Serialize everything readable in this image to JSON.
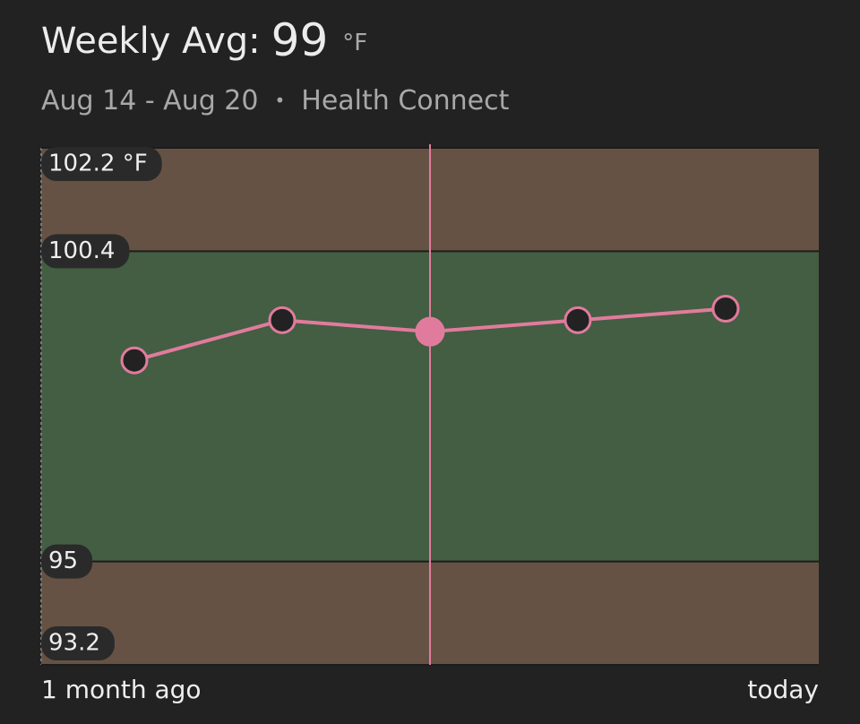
{
  "chart_data": {
    "type": "line",
    "title": "Weekly Avg:",
    "title_value": 99,
    "title_unit": "°F",
    "subtitle": "Aug 14 - Aug 20",
    "separator": "•",
    "source": "Health Connect",
    "x_labels": [
      "1 month ago",
      "today"
    ],
    "values": [
      98.5,
      99.2,
      99.0,
      99.2,
      99.4
    ],
    "color": "#e17b9d",
    "selected_index": 2,
    "ylim": [
      93.2,
      102.2
    ],
    "yticks": [
      {
        "value": 102.2,
        "label": "102.2 °F"
      },
      100.4,
      95,
      93.2
    ],
    "normal_range": [
      95,
      100.4
    ],
    "normal_color": "#435e42",
    "outside_color": "#665244"
  }
}
